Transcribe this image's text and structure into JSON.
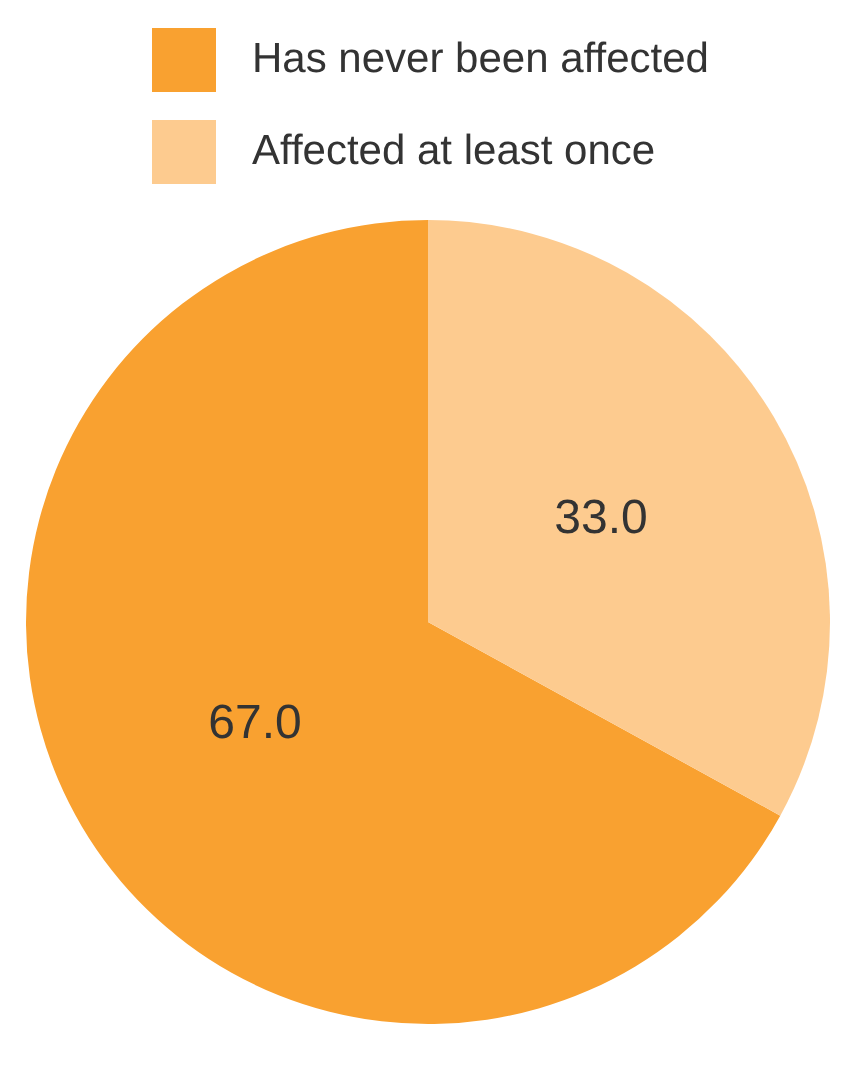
{
  "chart_data": {
    "type": "pie",
    "categories": [
      "Has never been affected",
      "Affected at least once"
    ],
    "values": [
      67.0,
      33.0
    ],
    "colors": [
      "#f9a130",
      "#fdcb8f"
    ],
    "legend": "top left",
    "value_labels": [
      "67.0",
      "33.0"
    ]
  }
}
